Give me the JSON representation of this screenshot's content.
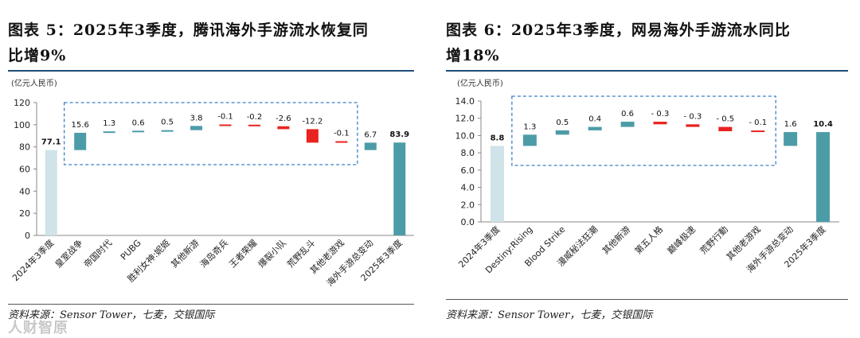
{
  "left": {
    "title_line1": "图表 5：2025年3季度，腾讯海外手游流水恢复同",
    "title_line2": "比增9%",
    "unit": "(亿元人民币)",
    "source": "资料来源：Sensor Tower，七麦，交银国际"
  },
  "right": {
    "title_line1": "图表 6：2025年3季度，网易海外手游流水同比",
    "title_line2": "增18%",
    "unit": "(亿元人民币)",
    "source": "资料来源：Sensor Tower，七麦，交银国际"
  },
  "watermark": "人财智原",
  "colors": {
    "base": "#cfe3e8",
    "teal": "#4c9ca8",
    "red": "#e8231f",
    "box": "#3a7fc8"
  },
  "chart_data": [
    {
      "type": "waterfall",
      "title": "图表 5：2025年3季度，腾讯海外手游流水恢复同比增9%",
      "ylabel": "(亿元人民币)",
      "ylim": [
        0,
        120
      ],
      "yticks": [
        0,
        20,
        40,
        60,
        80,
        100,
        120
      ],
      "ytick_labels": [
        "0",
        "20",
        "40",
        "60",
        "80",
        "100",
        "120"
      ],
      "categories": [
        "2024年3季度",
        "皇室战争",
        "帝国时代",
        "PUBG",
        "胜利女神:妮姬",
        "其他新游",
        "海岛奇兵",
        "王者荣耀",
        "爆裂小队",
        "荒野乱斗",
        "其他老游戏",
        "海外手游总变动",
        "2025年3季度"
      ],
      "values": [
        77.1,
        15.6,
        1.3,
        0.6,
        0.5,
        3.8,
        -0.1,
        -0.2,
        -2.6,
        -12.2,
        -0.1,
        6.7,
        83.9
      ],
      "labels": [
        "77.1",
        "15.6",
        "1.3",
        "0.6",
        "0.5",
        "3.8",
        "-0.1",
        "-0.2",
        "-2.6",
        "-12.2",
        "-0.1",
        "6.7",
        "83.9"
      ],
      "kinds": [
        "base",
        "up",
        "up",
        "up",
        "up",
        "up",
        "down",
        "down",
        "down",
        "down",
        "down",
        "up",
        "total"
      ],
      "dashed_box_categories": [
        "皇室战争",
        "其他老游戏"
      ]
    },
    {
      "type": "waterfall",
      "title": "图表 6：2025年3季度，网易海外手游流水同比增18%",
      "ylabel": "(亿元人民币)",
      "ylim": [
        0,
        14
      ],
      "yticks": [
        0,
        2,
        4,
        6,
        8,
        10,
        12,
        14
      ],
      "ytick_labels": [
        "0.0",
        "2.0",
        "4.0",
        "6.0",
        "8.0",
        "10.0",
        "12.0",
        "14.0"
      ],
      "categories": [
        "2024年3季度",
        "Destiny:Rising",
        "Blood Strike",
        "漫威秘法狂潮",
        "其他新游",
        "第五人格",
        "巅峰极速",
        "荒野行動",
        "其他老游戏",
        "海外手游总变动",
        "2025年3季度"
      ],
      "values": [
        8.8,
        1.3,
        0.5,
        0.4,
        0.6,
        -0.3,
        -0.3,
        -0.5,
        -0.1,
        1.6,
        10.4
      ],
      "labels": [
        "8.8",
        "1.3",
        "0.5",
        "0.4",
        "0.6",
        "- 0.3",
        "- 0.3",
        "- 0.5",
        "- 0.1",
        "1.6",
        "10.4"
      ],
      "kinds": [
        "base",
        "up",
        "up",
        "up",
        "up",
        "down",
        "down",
        "down",
        "down",
        "up",
        "total"
      ],
      "dashed_box_categories": [
        "Destiny:Rising",
        "其他老游戏"
      ]
    }
  ]
}
